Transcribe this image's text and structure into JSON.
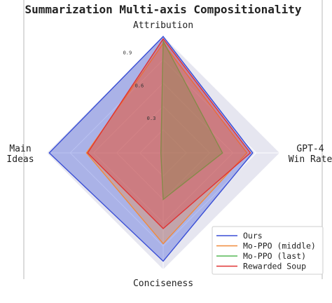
{
  "chart_data": {
    "type": "radar",
    "title": "Summarization Multi-axis Compositionality",
    "axes": [
      "Attribution",
      "GPT-4\nWin Rate",
      "Conciseness",
      "Main\nIdeas"
    ],
    "radial_ticks": [
      0.3,
      0.6,
      0.9
    ],
    "rlim": [
      0,
      1.0
    ],
    "grid": true,
    "legend_position": "bottom-right",
    "series": [
      {
        "name": "Ours",
        "color": "#3a4fd6",
        "values": [
          1.0,
          0.77,
          0.93,
          0.98
        ]
      },
      {
        "name": "Mo-PPO (middle)",
        "color": "#f08a3c",
        "values": [
          0.94,
          0.72,
          0.78,
          0.66
        ]
      },
      {
        "name": "Mo-PPO (last)",
        "color": "#55b855",
        "values": [
          0.96,
          0.51,
          0.4,
          0.02
        ]
      },
      {
        "name": "Rewarded Soup",
        "color": "#e03333",
        "values": [
          0.98,
          0.75,
          0.65,
          0.65
        ]
      }
    ]
  }
}
